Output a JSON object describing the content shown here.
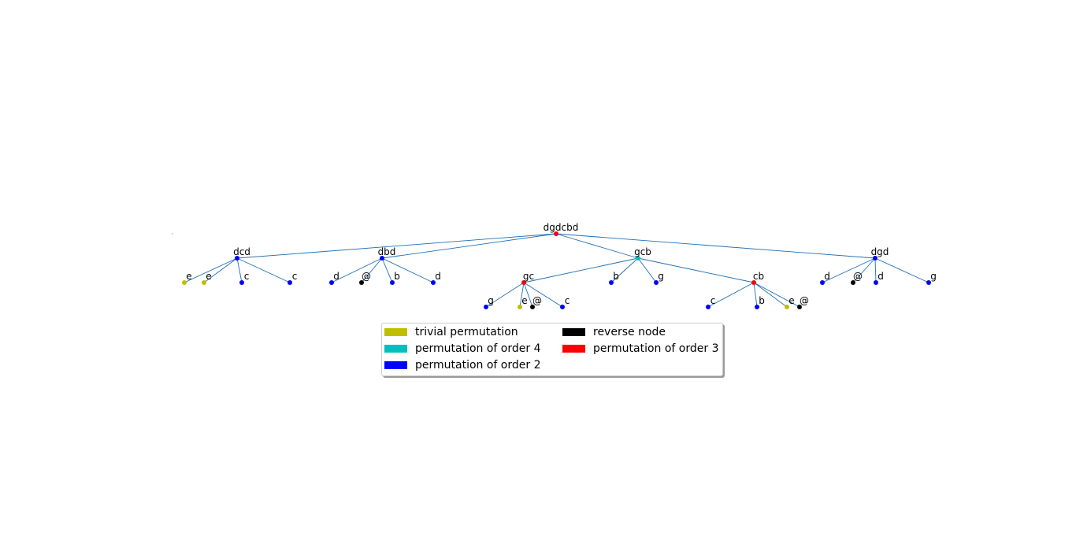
{
  "tree": {
    "edge_color": "#1f6fb4",
    "colors": {
      "trivial": "#bfbf00",
      "order4": "#00bfbf",
      "order2": "#0000ff",
      "reverse": "#000000",
      "order3": "#ff0000"
    },
    "nodes": [
      {
        "id": "root",
        "label": "dgdcbd",
        "type": "order3",
        "parent": null
      },
      {
        "id": "n1",
        "label": "dcd",
        "type": "order2",
        "parent": "root"
      },
      {
        "id": "n2",
        "label": "dbd",
        "type": "order2",
        "parent": "root"
      },
      {
        "id": "n3",
        "label": "gcb",
        "type": "order4",
        "parent": "root"
      },
      {
        "id": "n4",
        "label": "dgd",
        "type": "order2",
        "parent": "root"
      },
      {
        "id": "n1a",
        "label": "e",
        "type": "trivial",
        "parent": "n1"
      },
      {
        "id": "n1b",
        "label": "e",
        "type": "trivial",
        "parent": "n1"
      },
      {
        "id": "n1c",
        "label": "c",
        "type": "order2",
        "parent": "n1"
      },
      {
        "id": "n1d",
        "label": "c",
        "type": "order2",
        "parent": "n1"
      },
      {
        "id": "n2a",
        "label": "d",
        "type": "order2",
        "parent": "n2"
      },
      {
        "id": "n2b",
        "label": "@",
        "type": "reverse",
        "parent": "n2"
      },
      {
        "id": "n2c",
        "label": "b",
        "type": "order2",
        "parent": "n2"
      },
      {
        "id": "n2d",
        "label": "d",
        "type": "order2",
        "parent": "n2"
      },
      {
        "id": "n3a",
        "label": "gc",
        "type": "order3",
        "parent": "n3"
      },
      {
        "id": "n3b",
        "label": "b",
        "type": "order2",
        "parent": "n3"
      },
      {
        "id": "n3c",
        "label": "g",
        "type": "order2",
        "parent": "n3"
      },
      {
        "id": "n3d",
        "label": "cb",
        "type": "order3",
        "parent": "n3"
      },
      {
        "id": "n4a",
        "label": "d",
        "type": "order2",
        "parent": "n4"
      },
      {
        "id": "n4b",
        "label": "@",
        "type": "reverse",
        "parent": "n4"
      },
      {
        "id": "n4c",
        "label": "d",
        "type": "order2",
        "parent": "n4"
      },
      {
        "id": "n4d",
        "label": "g",
        "type": "order2",
        "parent": "n4"
      },
      {
        "id": "n3a1",
        "label": "g",
        "type": "order2",
        "parent": "n3a"
      },
      {
        "id": "n3a2",
        "label": "e",
        "type": "trivial",
        "parent": "n3a"
      },
      {
        "id": "n3a3",
        "label": "@",
        "type": "reverse",
        "parent": "n3a"
      },
      {
        "id": "n3a4",
        "label": "c",
        "type": "order2",
        "parent": "n3a"
      },
      {
        "id": "n3d1",
        "label": "c",
        "type": "order2",
        "parent": "n3d"
      },
      {
        "id": "n3d2",
        "label": "b",
        "type": "order2",
        "parent": "n3d"
      },
      {
        "id": "n3d3",
        "label": "e",
        "type": "trivial",
        "parent": "n3d"
      },
      {
        "id": "n3d4",
        "label": "@",
        "type": "reverse",
        "parent": "n3d"
      }
    ]
  },
  "legend": {
    "items": [
      {
        "label": "trivial permutation",
        "color": "#bfbf00"
      },
      {
        "label": "permutation of order 4",
        "color": "#00bfbf"
      },
      {
        "label": "permutation of order 2",
        "color": "#0000ff"
      },
      {
        "label": "reverse node",
        "color": "#000000"
      },
      {
        "label": "permutation of order 3",
        "color": "#ff0000"
      }
    ]
  }
}
